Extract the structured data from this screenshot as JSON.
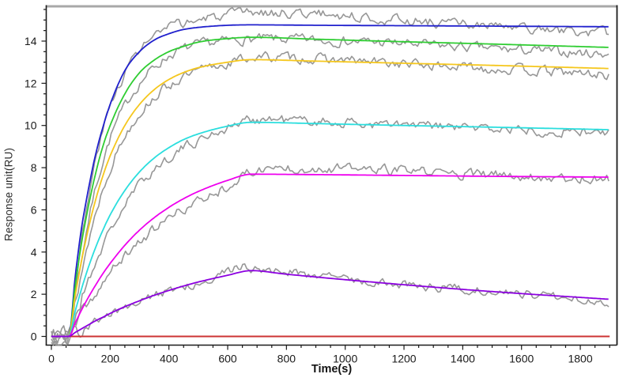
{
  "chart_data": {
    "type": "line",
    "title": "",
    "xlabel": "Time(s)",
    "ylabel": "Response unit(RU)",
    "axes": {
      "x": {
        "range": [
          -20,
          1928
        ],
        "major_ticks": [
          0,
          200,
          400,
          600,
          800,
          1000,
          1200,
          1400,
          1600,
          1800
        ],
        "minor_step": 50,
        "minor_max": 1900
      },
      "y": {
        "range": [
          -0.41,
          15.69
        ],
        "major_ticks": [
          0,
          2,
          4,
          6,
          8,
          10,
          12,
          14
        ],
        "minor_step": 0.5,
        "minor_max": 15.5
      },
      "grid": false
    },
    "frame_colors": {
      "top": "#a8a8a8",
      "right": "#1a1a1a",
      "left": "#1a1a1a",
      "bottom": "#1a1a1a"
    },
    "injection_start_s": 60,
    "injection_end_s": 680,
    "raw_trace_color": "#979797",
    "baseline_series": {
      "name": "reference-baseline",
      "color": "#cc3333",
      "points": [
        [
          0,
          0
        ],
        [
          1900,
          0
        ]
      ]
    },
    "fit_series": [
      {
        "name": "fit-conc-1",
        "color": "#2020cd",
        "points": [
          [
            0,
            0
          ],
          [
            60,
            0
          ],
          [
            80,
            2.7
          ],
          [
            100,
            4.9
          ],
          [
            125,
            6.9
          ],
          [
            150,
            8.6
          ],
          [
            175,
            9.9
          ],
          [
            200,
            11.0
          ],
          [
            250,
            12.6
          ],
          [
            300,
            13.5
          ],
          [
            350,
            14.05
          ],
          [
            400,
            14.35
          ],
          [
            450,
            14.55
          ],
          [
            500,
            14.65
          ],
          [
            600,
            14.75
          ],
          [
            680,
            14.77
          ],
          [
            900,
            14.75
          ],
          [
            1200,
            14.73
          ],
          [
            1500,
            14.71
          ],
          [
            1900,
            14.68
          ]
        ]
      },
      {
        "name": "fit-conc-2",
        "color": "#2fcd32",
        "points": [
          [
            0,
            0
          ],
          [
            60,
            0
          ],
          [
            80,
            2.3
          ],
          [
            100,
            4.2
          ],
          [
            125,
            6.1
          ],
          [
            150,
            7.7
          ],
          [
            175,
            9.0
          ],
          [
            200,
            10.0
          ],
          [
            250,
            11.5
          ],
          [
            300,
            12.5
          ],
          [
            350,
            13.1
          ],
          [
            400,
            13.5
          ],
          [
            450,
            13.75
          ],
          [
            500,
            13.95
          ],
          [
            600,
            14.12
          ],
          [
            680,
            14.18
          ],
          [
            900,
            14.09
          ],
          [
            1200,
            13.97
          ],
          [
            1500,
            13.86
          ],
          [
            1900,
            13.7
          ]
        ]
      },
      {
        "name": "fit-conc-3",
        "color": "#f5c71e",
        "points": [
          [
            0,
            0
          ],
          [
            60,
            0
          ],
          [
            80,
            1.83
          ],
          [
            100,
            3.39
          ],
          [
            125,
            5.06
          ],
          [
            150,
            6.45
          ],
          [
            175,
            7.6
          ],
          [
            200,
            8.56
          ],
          [
            250,
            10.0
          ],
          [
            300,
            11.0
          ],
          [
            350,
            11.7
          ],
          [
            400,
            12.18
          ],
          [
            450,
            12.51
          ],
          [
            500,
            12.74
          ],
          [
            600,
            13.0
          ],
          [
            680,
            13.12
          ],
          [
            900,
            13.05
          ],
          [
            1200,
            12.95
          ],
          [
            1500,
            12.85
          ],
          [
            1900,
            12.7
          ]
        ]
      },
      {
        "name": "fit-conc-4",
        "color": "#2bdede",
        "points": [
          [
            0,
            0
          ],
          [
            60,
            0
          ],
          [
            80,
            1.13
          ],
          [
            100,
            2.13
          ],
          [
            125,
            3.24
          ],
          [
            150,
            4.2
          ],
          [
            175,
            5.03
          ],
          [
            200,
            5.76
          ],
          [
            250,
            6.92
          ],
          [
            300,
            7.8
          ],
          [
            350,
            8.46
          ],
          [
            400,
            8.95
          ],
          [
            450,
            9.33
          ],
          [
            500,
            9.6
          ],
          [
            600,
            9.97
          ],
          [
            680,
            10.15
          ],
          [
            900,
            10.09
          ],
          [
            1200,
            10.0
          ],
          [
            1500,
            9.92
          ],
          [
            1900,
            9.8
          ]
        ]
      },
      {
        "name": "fit-conc-5",
        "color": "#ee00ee",
        "points": [
          [
            0,
            0
          ],
          [
            60,
            0
          ],
          [
            80,
            0.61
          ],
          [
            100,
            1.18
          ],
          [
            125,
            1.83
          ],
          [
            150,
            2.42
          ],
          [
            175,
            2.97
          ],
          [
            200,
            3.46
          ],
          [
            250,
            4.32
          ],
          [
            300,
            5.04
          ],
          [
            350,
            5.63
          ],
          [
            400,
            6.12
          ],
          [
            450,
            6.53
          ],
          [
            500,
            6.87
          ],
          [
            600,
            7.4
          ],
          [
            680,
            7.69
          ],
          [
            900,
            7.67
          ],
          [
            1200,
            7.63
          ],
          [
            1500,
            7.59
          ],
          [
            1900,
            7.55
          ]
        ]
      },
      {
        "name": "fit-conc-6",
        "color": "#8c00e0",
        "points": [
          [
            0,
            0
          ],
          [
            60,
            0
          ],
          [
            80,
            0.18
          ],
          [
            100,
            0.34
          ],
          [
            125,
            0.54
          ],
          [
            150,
            0.74
          ],
          [
            175,
            0.91
          ],
          [
            200,
            1.09
          ],
          [
            250,
            1.41
          ],
          [
            300,
            1.69
          ],
          [
            350,
            1.95
          ],
          [
            400,
            2.18
          ],
          [
            450,
            2.39
          ],
          [
            500,
            2.58
          ],
          [
            600,
            2.9
          ],
          [
            680,
            3.12
          ],
          [
            800,
            2.95
          ],
          [
            1000,
            2.69
          ],
          [
            1200,
            2.45
          ],
          [
            1400,
            2.23
          ],
          [
            1600,
            2.03
          ],
          [
            1800,
            1.85
          ],
          [
            1900,
            1.76
          ]
        ]
      }
    ],
    "raw_series": [
      {
        "name": "raw-conc-1",
        "seed": 3,
        "noise_amp": 0.2,
        "points": [
          [
            0,
            0.1
          ],
          [
            40,
            0.0
          ],
          [
            60,
            -0.1
          ],
          [
            80,
            2.2
          ],
          [
            100,
            4.2
          ],
          [
            150,
            8.3
          ],
          [
            200,
            10.9
          ],
          [
            250,
            12.5
          ],
          [
            300,
            13.6
          ],
          [
            400,
            14.6
          ],
          [
            500,
            15.0
          ],
          [
            600,
            15.2
          ],
          [
            700,
            15.35
          ],
          [
            900,
            15.3
          ],
          [
            1100,
            15.1
          ],
          [
            1300,
            14.9
          ],
          [
            1500,
            14.7
          ],
          [
            1700,
            14.5
          ],
          [
            1900,
            14.35
          ]
        ]
      },
      {
        "name": "raw-conc-2",
        "seed": 7,
        "noise_amp": 0.2,
        "points": [
          [
            0,
            0.05
          ],
          [
            40,
            0.1
          ],
          [
            60,
            0.0
          ],
          [
            80,
            1.9
          ],
          [
            100,
            3.6
          ],
          [
            150,
            7.0
          ],
          [
            200,
            9.4
          ],
          [
            250,
            10.9
          ],
          [
            300,
            12.0
          ],
          [
            400,
            13.3
          ],
          [
            500,
            13.8
          ],
          [
            600,
            14.0
          ],
          [
            700,
            14.1
          ],
          [
            900,
            14.05
          ],
          [
            1100,
            13.95
          ],
          [
            1300,
            13.8
          ],
          [
            1500,
            13.65
          ],
          [
            1700,
            13.5
          ],
          [
            1900,
            13.4
          ]
        ]
      },
      {
        "name": "raw-conc-3",
        "seed": 13,
        "noise_amp": 0.2,
        "points": [
          [
            0,
            0.0
          ],
          [
            40,
            -0.1
          ],
          [
            60,
            0.05
          ],
          [
            80,
            1.5
          ],
          [
            100,
            2.9
          ],
          [
            150,
            5.8
          ],
          [
            200,
            8.0
          ],
          [
            250,
            9.5
          ],
          [
            300,
            10.6
          ],
          [
            400,
            11.9
          ],
          [
            500,
            12.55
          ],
          [
            600,
            12.95
          ],
          [
            700,
            13.25
          ],
          [
            900,
            13.15
          ],
          [
            1100,
            13.0
          ],
          [
            1300,
            12.85
          ],
          [
            1500,
            12.7
          ],
          [
            1700,
            12.55
          ],
          [
            1900,
            12.4
          ]
        ]
      },
      {
        "name": "raw-conc-4",
        "seed": 21,
        "noise_amp": 0.2,
        "points": [
          [
            0,
            0.05
          ],
          [
            40,
            0.15
          ],
          [
            60,
            -0.05
          ],
          [
            80,
            0.9
          ],
          [
            100,
            1.7
          ],
          [
            150,
            3.5
          ],
          [
            200,
            5.0
          ],
          [
            250,
            6.2
          ],
          [
            300,
            7.2
          ],
          [
            400,
            8.5
          ],
          [
            500,
            9.3
          ],
          [
            600,
            9.9
          ],
          [
            700,
            10.3
          ],
          [
            900,
            10.2
          ],
          [
            1100,
            10.05
          ],
          [
            1300,
            9.95
          ],
          [
            1500,
            9.85
          ],
          [
            1700,
            9.75
          ],
          [
            1900,
            9.65
          ]
        ]
      },
      {
        "name": "raw-conc-5",
        "seed": 37,
        "noise_amp": 0.2,
        "points": [
          [
            0,
            -0.05
          ],
          [
            40,
            0.1
          ],
          [
            60,
            0.0
          ],
          [
            80,
            0.5
          ],
          [
            100,
            0.9
          ],
          [
            150,
            2.0
          ],
          [
            200,
            3.0
          ],
          [
            250,
            3.8
          ],
          [
            300,
            4.5
          ],
          [
            400,
            5.6
          ],
          [
            500,
            6.4
          ],
          [
            600,
            7.15
          ],
          [
            680,
            7.8
          ],
          [
            800,
            8.0
          ],
          [
            1000,
            7.95
          ],
          [
            1200,
            7.85
          ],
          [
            1400,
            7.7
          ],
          [
            1600,
            7.6
          ],
          [
            1800,
            7.5
          ],
          [
            1900,
            7.45
          ]
        ]
      },
      {
        "name": "raw-conc-6",
        "seed": 51,
        "noise_amp": 0.18,
        "points": [
          [
            0,
            0.1
          ],
          [
            40,
            -0.1
          ],
          [
            60,
            0.05
          ],
          [
            100,
            0.3
          ],
          [
            150,
            0.7
          ],
          [
            200,
            1.05
          ],
          [
            300,
            1.65
          ],
          [
            400,
            2.15
          ],
          [
            500,
            2.6
          ],
          [
            600,
            3.05
          ],
          [
            660,
            3.3
          ],
          [
            700,
            3.2
          ],
          [
            800,
            3.05
          ],
          [
            1000,
            2.75
          ],
          [
            1200,
            2.45
          ],
          [
            1400,
            2.25
          ],
          [
            1600,
            2.05
          ],
          [
            1800,
            1.8
          ],
          [
            1900,
            1.6
          ]
        ]
      }
    ]
  }
}
